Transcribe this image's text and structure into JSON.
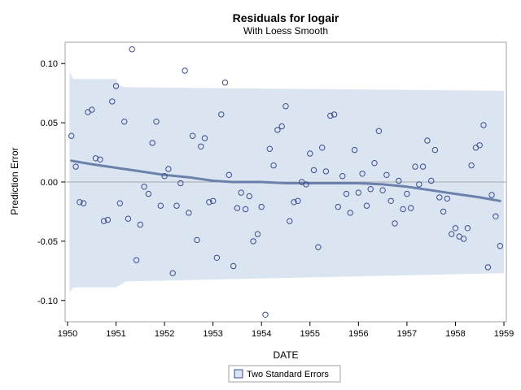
{
  "chart_data": {
    "type": "scatter",
    "title": "Residuals for logair",
    "subtitle": "With Loess Smooth",
    "xlabel": "DATE",
    "ylabel": "Prediction Error",
    "xlim": [
      1949.95,
      1959.05
    ],
    "ylim": [
      -0.118,
      0.118
    ],
    "x_ticks": [
      1950,
      1951,
      1952,
      1953,
      1954,
      1955,
      1956,
      1957,
      1958,
      1959
    ],
    "x_tick_labels": [
      "1950",
      "1951",
      "1952",
      "1953",
      "1954",
      "1955",
      "1956",
      "1957",
      "1958",
      "1959"
    ],
    "y_ticks": [
      -0.1,
      -0.05,
      0.0,
      0.05,
      0.1
    ],
    "y_tick_labels": [
      "-0.10",
      "-0.05",
      "0.00",
      "0.05",
      "0.10"
    ],
    "reference_line_y": 0,
    "grid": false,
    "legend": {
      "position": "bottom-center",
      "entries": [
        "Two Standard Errors"
      ]
    },
    "colors": {
      "band": "#dbe5f2",
      "marker": "#3b4d8f",
      "loess": "#6b80aa",
      "reference": "#a7a7a7",
      "frame": "#a0a0a0"
    },
    "band": {
      "x": [
        1950.04,
        1950.12,
        1951.0,
        1951.08,
        1951.2,
        1959.0
      ],
      "upper": [
        0.093,
        0.087,
        0.087,
        0.081,
        0.08,
        0.077
      ],
      "lower": [
        -0.093,
        -0.089,
        -0.089,
        -0.087,
        -0.084,
        -0.077
      ]
    },
    "loess": {
      "x": [
        1950.08,
        1950.5,
        1951.0,
        1951.5,
        1952.0,
        1952.5,
        1953.0,
        1953.4,
        1954.0,
        1954.5,
        1955.0,
        1955.5,
        1956.0,
        1956.5,
        1957.0,
        1957.5,
        1958.0,
        1958.5,
        1958.92
      ],
      "y": [
        0.018,
        0.015,
        0.012,
        0.009,
        0.006,
        0.004,
        0.001,
        0.0,
        0.0,
        -0.001,
        -0.001,
        -0.001,
        -0.001,
        -0.002,
        -0.004,
        -0.007,
        -0.01,
        -0.013,
        -0.016
      ]
    },
    "series": [
      {
        "name": "Residuals",
        "x": [
          1950.08,
          1950.17,
          1950.25,
          1950.33,
          1950.42,
          1950.5,
          1950.58,
          1950.67,
          1950.75,
          1950.83,
          1950.92,
          1951.0,
          1951.08,
          1951.17,
          1951.25,
          1951.33,
          1951.42,
          1951.5,
          1951.58,
          1951.67,
          1951.75,
          1951.83,
          1951.92,
          1952.0,
          1952.08,
          1952.17,
          1952.25,
          1952.33,
          1952.42,
          1952.5,
          1952.58,
          1952.67,
          1952.75,
          1952.83,
          1952.92,
          1953.0,
          1953.08,
          1953.17,
          1953.25,
          1953.33,
          1953.42,
          1953.5,
          1953.58,
          1953.67,
          1953.75,
          1953.83,
          1953.92,
          1954.0,
          1954.08,
          1954.17,
          1954.25,
          1954.33,
          1954.42,
          1954.5,
          1954.58,
          1954.67,
          1954.75,
          1954.83,
          1954.92,
          1955.0,
          1955.08,
          1955.17,
          1955.25,
          1955.33,
          1955.42,
          1955.5,
          1955.58,
          1955.67,
          1955.75,
          1955.83,
          1955.92,
          1956.0,
          1956.08,
          1956.17,
          1956.25,
          1956.33,
          1956.42,
          1956.5,
          1956.58,
          1956.67,
          1956.75,
          1956.83,
          1956.92,
          1957.0,
          1957.08,
          1957.17,
          1957.25,
          1957.33,
          1957.42,
          1957.5,
          1957.58,
          1957.67,
          1957.75,
          1957.83,
          1957.92,
          1958.0,
          1958.08,
          1958.17,
          1958.25,
          1958.33,
          1958.42,
          1958.5,
          1958.58,
          1958.67,
          1958.75,
          1958.83,
          1958.92
        ],
        "y": [
          0.039,
          0.013,
          -0.017,
          -0.018,
          0.059,
          0.061,
          0.02,
          0.019,
          -0.033,
          -0.032,
          0.068,
          0.081,
          -0.018,
          0.051,
          -0.031,
          0.112,
          -0.066,
          -0.036,
          -0.004,
          -0.01,
          0.033,
          0.051,
          -0.02,
          0.005,
          0.011,
          -0.077,
          -0.02,
          -0.001,
          0.094,
          -0.026,
          0.039,
          -0.049,
          0.03,
          0.037,
          -0.017,
          -0.016,
          -0.064,
          0.057,
          0.084,
          0.006,
          -0.071,
          -0.022,
          -0.009,
          -0.023,
          -0.012,
          -0.05,
          -0.044,
          -0.021,
          -0.112,
          0.028,
          0.014,
          0.044,
          0.047,
          0.064,
          -0.033,
          -0.017,
          -0.016,
          0.0,
          -0.002,
          0.024,
          0.01,
          -0.055,
          0.029,
          0.009,
          0.056,
          0.057,
          -0.021,
          0.005,
          -0.01,
          -0.026,
          0.027,
          -0.009,
          0.007,
          -0.02,
          -0.006,
          0.016,
          0.043,
          -0.007,
          0.006,
          -0.016,
          -0.035,
          0.001,
          -0.023,
          -0.01,
          -0.022,
          0.013,
          -0.002,
          0.013,
          0.035,
          0.001,
          0.027,
          -0.013,
          -0.025,
          -0.014,
          -0.044,
          -0.039,
          -0.046,
          -0.048,
          -0.039,
          0.014,
          0.029,
          0.031,
          0.048,
          -0.072,
          -0.011,
          -0.029,
          -0.054
        ]
      }
    ]
  }
}
